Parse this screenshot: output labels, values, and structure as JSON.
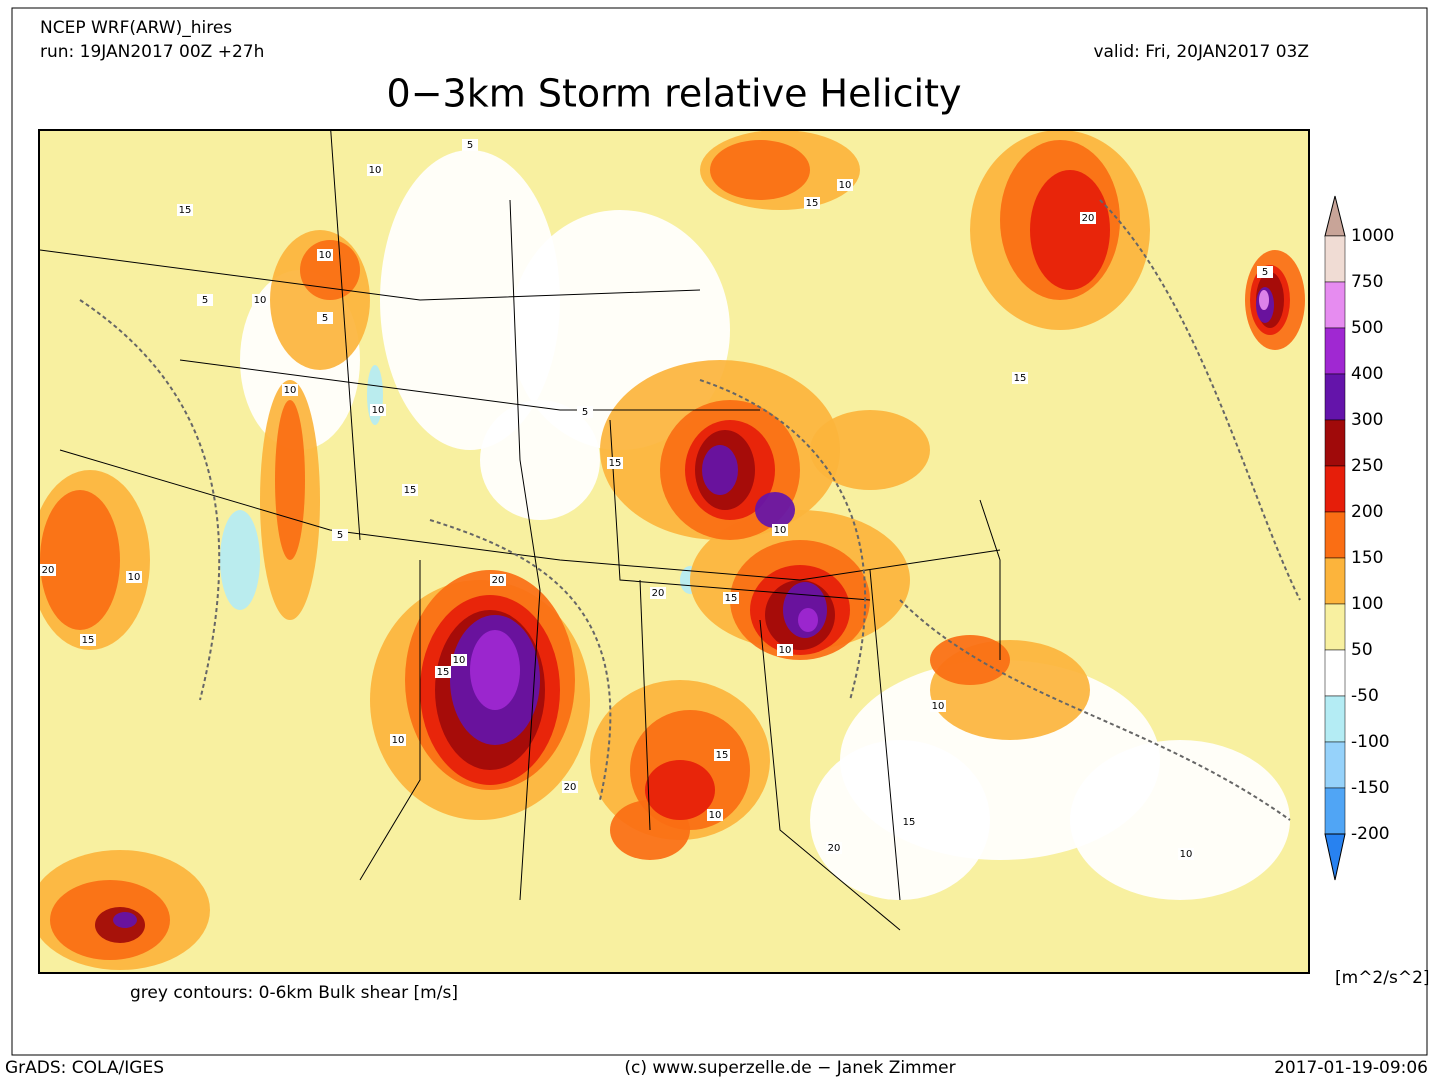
{
  "header": {
    "model": "NCEP WRF(ARW)_hires",
    "run": "run: 19JAN2017 00Z +27h",
    "valid": "valid: Fri, 20JAN2017 03Z",
    "title": "0−3km Storm relative Helicity"
  },
  "colorbar": {
    "levels": [
      1000,
      750,
      500,
      400,
      300,
      250,
      200,
      150,
      100,
      50,
      -50,
      -100,
      -150,
      -200
    ],
    "colors": [
      "#c8a498",
      "#f0dcd4",
      "#e68cf0",
      "#a028d2",
      "#6414aa",
      "#a00a0a",
      "#e61e0a",
      "#fa6e14",
      "#fcb43c",
      "#f8f0a0",
      "#ffffff",
      "#b4ecf4",
      "#96d2fa",
      "#50a5f5",
      "#2882f0"
    ],
    "unit": "[m^2/s^2]"
  },
  "map": {
    "note": "grey contours: 0-6km Bulk shear [m/s]",
    "contour_labels": [
      "10",
      "15",
      "10",
      "5",
      "10",
      "5",
      "10",
      "10",
      "15",
      "20",
      "5",
      "10",
      "15",
      "20",
      "5",
      "10",
      "15",
      "5",
      "10",
      "15",
      "20",
      "15",
      "10",
      "10",
      "20",
      "15",
      "10",
      "10",
      "15",
      "20",
      "15",
      "10",
      "5",
      "20",
      "15",
      "10"
    ]
  },
  "footer": {
    "left": "GrADS: COLA/IGES",
    "center": "(c) www.superzelle.de − Janek Zimmer",
    "right": "2017-01-19-09:06"
  }
}
